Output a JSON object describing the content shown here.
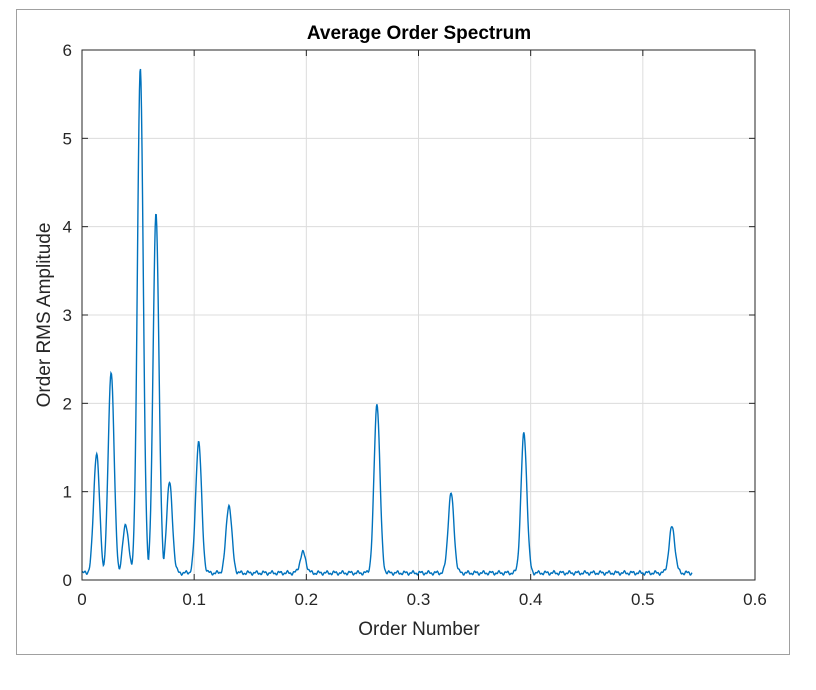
{
  "colors": {
    "line": "#0072BD",
    "grid": "#dcdcdc",
    "axis": "#262626",
    "frame_border": "#a0a0a0"
  },
  "chart_data": {
    "type": "line",
    "title": "Average Order Spectrum",
    "xlabel": "Order Number",
    "ylabel": "Order RMS Amplitude",
    "xlim": [
      0,
      0.6
    ],
    "ylim": [
      0,
      6
    ],
    "xticks": [
      0,
      0.1,
      0.2,
      0.3,
      0.4,
      0.5,
      0.6
    ],
    "xtick_labels": [
      "0",
      "0.1",
      "0.2",
      "0.3",
      "0.4",
      "0.5",
      "0.6"
    ],
    "yticks": [
      0,
      1,
      2,
      3,
      4,
      5,
      6
    ],
    "ytick_labels": [
      "0",
      "1",
      "2",
      "3",
      "4",
      "5",
      "6"
    ],
    "grid": true,
    "legend": false,
    "x_range": [
      0.0,
      0.544
    ],
    "baseline": 0.08,
    "peaks": [
      {
        "x": 0.013,
        "y": 1.44
      },
      {
        "x": 0.026,
        "y": 2.37
      },
      {
        "x": 0.039,
        "y": 0.63
      },
      {
        "x": 0.052,
        "y": 5.78
      },
      {
        "x": 0.066,
        "y": 4.14
      },
      {
        "x": 0.078,
        "y": 1.1
      },
      {
        "x": 0.104,
        "y": 1.57
      },
      {
        "x": 0.131,
        "y": 0.85
      },
      {
        "x": 0.197,
        "y": 0.31
      },
      {
        "x": 0.263,
        "y": 2.0
      },
      {
        "x": 0.329,
        "y": 0.98
      },
      {
        "x": 0.394,
        "y": 1.66
      },
      {
        "x": 0.526,
        "y": 0.6
      }
    ]
  }
}
